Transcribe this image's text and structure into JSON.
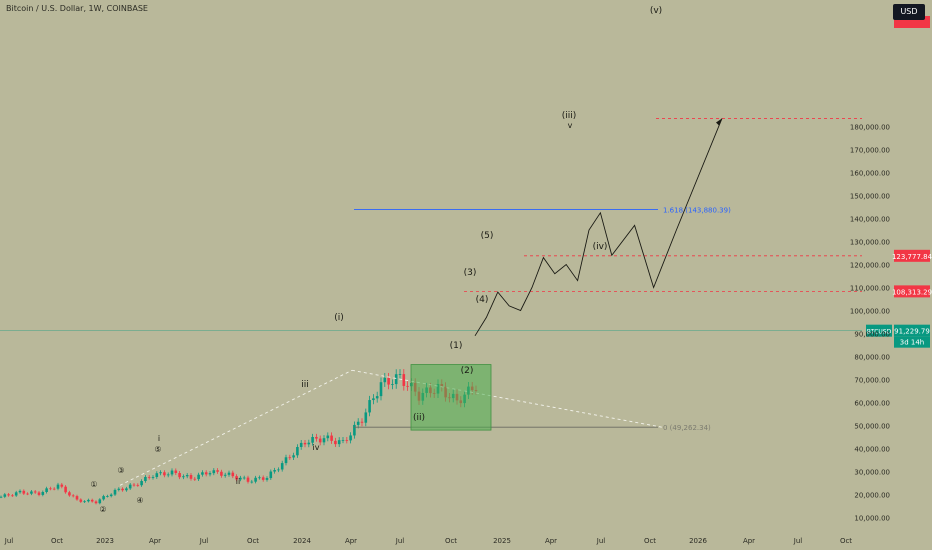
{
  "header": {
    "title": "Bitcoin / U.S. Dollar, 1W, COINBASE",
    "currency_button": "USD"
  },
  "chart_data": {
    "type": "line",
    "title": "Bitcoin / U.S. Dollar, 1W, COINBASE",
    "x_ticks": [
      "Jul",
      "Oct",
      "2023",
      "Apr",
      "Jul",
      "Oct",
      "2024",
      "Apr",
      "Jul",
      "Oct",
      "2025",
      "Apr",
      "Jul",
      "Oct",
      "2026",
      "Apr",
      "Jul",
      "Oct"
    ],
    "y_ticks": [
      "10,000.00",
      "20,000.00",
      "30,000.00",
      "40,000.00",
      "50,000.00",
      "60,000.00",
      "70,000.00",
      "80,000.00",
      "90,000.00",
      "100,000.00",
      "110,000.00",
      "120,000.00",
      "130,000.00",
      "140,000.00",
      "150,000.00",
      "160,000.00",
      "170,000.00",
      "180,000.00"
    ],
    "ylim": [
      5000,
      195000
    ],
    "price_tags": [
      {
        "label": "91,229.79",
        "sub": "3d 14h",
        "symbol": "BTCUSD",
        "value": 91229.79,
        "color": "#089981"
      },
      {
        "label": "123,777.84",
        "value": 123777.84,
        "color": "#f23645"
      },
      {
        "label": "108,313.29",
        "value": 108313.29,
        "color": "#f23645"
      }
    ],
    "level_labels": [
      {
        "text": "1.618 (143,880.39)",
        "value": 143880.39,
        "color": "#2962ff"
      },
      {
        "text": "0 (49,262.34)",
        "value": 49262.34,
        "color": "#7c7c70"
      }
    ],
    "candles_t": [
      0,
      5,
      10,
      15,
      20,
      25,
      30,
      35,
      40,
      45,
      50,
      55,
      60,
      65,
      70,
      75,
      80,
      85,
      90,
      95,
      100,
      105,
      110,
      115,
      120,
      125
    ],
    "candles_price": [
      19000,
      21000,
      20500,
      24000,
      17500,
      16800,
      21500,
      24000,
      28500,
      29500,
      27000,
      30000,
      28500,
      26000,
      27500,
      35000,
      43000,
      44500,
      42500,
      53000,
      68000,
      71000,
      63000,
      66500,
      60500,
      67500
    ],
    "projection_t": [
      125,
      128,
      131,
      134,
      137,
      140,
      143,
      146,
      149,
      152,
      155,
      158,
      161,
      167,
      172,
      178,
      190
    ],
    "projection_price": [
      89000,
      97000,
      108000,
      102000,
      100000,
      110000,
      123000,
      116000,
      120000,
      113000,
      135000,
      142500,
      124000,
      137000,
      110000,
      135000,
      183500
    ],
    "wave_labels": [
      "i",
      "ii",
      "iii",
      "iv",
      "v",
      "(i)",
      "(ii)",
      "(iii)",
      "(iv)",
      "(v)",
      "(1)",
      "(2)",
      "(3)",
      "(4)",
      "(5)",
      "①",
      "②",
      "③",
      "④",
      "⑤"
    ]
  }
}
